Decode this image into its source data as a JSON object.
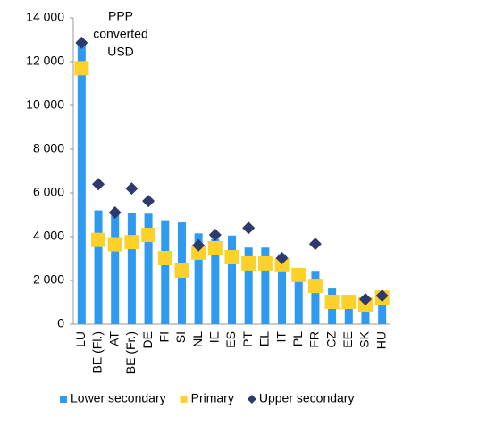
{
  "chart_data": {
    "type": "bar",
    "annotation": [
      "PPP",
      "converted",
      "USD"
    ],
    "categories": [
      "LU",
      "BE (Fl.)",
      "AT",
      "BE (Fr.)",
      "DE",
      "FI",
      "SI",
      "NL",
      "IE",
      "ES",
      "PT",
      "EL",
      "IT",
      "PL",
      "FR",
      "CZ",
      "EE",
      "SK",
      "HU"
    ],
    "series": [
      {
        "name": "Lower secondary",
        "color": "#2e9af0",
        "marker": "bar",
        "values": [
          12800,
          5200,
          5000,
          5100,
          5050,
          4750,
          4650,
          4150,
          3900,
          4050,
          3500,
          3500,
          3200,
          2300,
          2400,
          1630,
          1100,
          950,
          950
        ]
      },
      {
        "name": "Primary",
        "color": "#fcd22a",
        "marker": "square",
        "values": [
          11700,
          3850,
          3650,
          3750,
          4080,
          3020,
          2450,
          3270,
          3470,
          3060,
          2780,
          2780,
          2700,
          2250,
          1750,
          1020,
          1020,
          900,
          1220
        ]
      },
      {
        "name": "Upper secondary",
        "color": "#2d3a6e",
        "marker": "diamond",
        "values": [
          12860,
          6400,
          5100,
          6200,
          5630,
          null,
          null,
          3600,
          4080,
          null,
          4400,
          null,
          3020,
          null,
          3670,
          null,
          null,
          1140,
          1300
        ]
      }
    ],
    "ylim": [
      0,
      14000
    ],
    "yticks": [
      0,
      {
        "value": 2000,
        "label": "2 000"
      },
      {
        "value": 4000,
        "label": "4 000"
      },
      {
        "value": 6000,
        "label": "6 000"
      },
      {
        "value": 8000,
        "label": "8 000"
      },
      {
        "value": 10000,
        "label": "10 000"
      },
      {
        "value": 12000,
        "label": "12 000"
      },
      {
        "value": 14000,
        "label": "14 000"
      }
    ],
    "legend": "bottom"
  }
}
